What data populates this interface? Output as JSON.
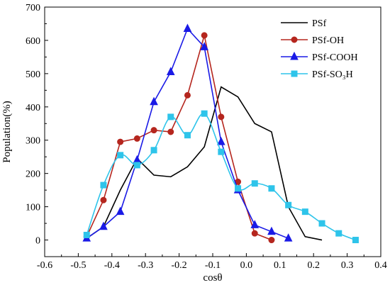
{
  "chart_data": {
    "type": "line",
    "xlabel": "cosθ",
    "ylabel": "Population(%)",
    "xlim": [
      -0.6,
      0.4
    ],
    "ylim": [
      -50,
      700
    ],
    "x_ticks": [
      "-0.6",
      "-0.5",
      "-0.4",
      "-0.3",
      "-0.2",
      "-0.1",
      "0.0",
      "0.1",
      "0.2",
      "0.3",
      "0.4"
    ],
    "y_ticks": [
      "0",
      "100",
      "200",
      "300",
      "400",
      "500",
      "600",
      "700"
    ],
    "legend_position": "top-right",
    "series": [
      {
        "name": "PSf",
        "color": "#000000",
        "marker": "none",
        "smooth": false,
        "x": [
          -0.475,
          -0.425,
          -0.375,
          -0.325,
          -0.275,
          -0.225,
          -0.175,
          -0.125,
          -0.075,
          -0.025,
          0.025,
          0.075,
          0.125,
          0.175,
          0.225
        ],
        "y": [
          5,
          40,
          150,
          245,
          195,
          190,
          220,
          280,
          460,
          430,
          350,
          325,
          100,
          10,
          0
        ]
      },
      {
        "name": "PSf-OH",
        "color": "#b5261e",
        "marker": "circle",
        "smooth": false,
        "x": [
          -0.475,
          -0.425,
          -0.375,
          -0.325,
          -0.275,
          -0.225,
          -0.175,
          -0.125,
          -0.075,
          -0.025,
          0.025,
          0.075
        ],
        "y": [
          10,
          120,
          295,
          305,
          330,
          325,
          435,
          615,
          370,
          175,
          20,
          0
        ]
      },
      {
        "name": "PSf-COOH",
        "color": "#1a1ae6",
        "marker": "triangle",
        "smooth": false,
        "x": [
          -0.475,
          -0.425,
          -0.375,
          -0.325,
          -0.275,
          -0.225,
          -0.175,
          -0.125,
          -0.075,
          -0.025,
          0.025,
          0.075,
          0.125
        ],
        "y": [
          5,
          40,
          85,
          240,
          415,
          505,
          635,
          580,
          295,
          150,
          45,
          25,
          5
        ]
      },
      {
        "name": "PSf-SO₃H",
        "color": "#2ec4ea",
        "marker": "square",
        "smooth": true,
        "x": [
          -0.475,
          -0.425,
          -0.375,
          -0.325,
          -0.275,
          -0.225,
          -0.175,
          -0.125,
          -0.075,
          -0.025,
          0.025,
          0.075,
          0.125,
          0.175,
          0.225,
          0.275,
          0.325
        ],
        "y": [
          15,
          165,
          255,
          225,
          270,
          370,
          315,
          380,
          265,
          155,
          170,
          155,
          105,
          85,
          50,
          20,
          0
        ]
      }
    ]
  }
}
